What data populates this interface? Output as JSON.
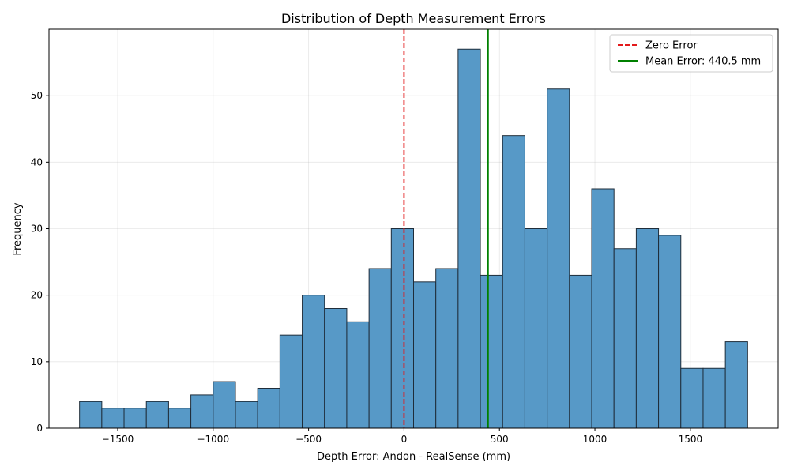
{
  "chart_data": {
    "type": "bar",
    "title": "Distribution of Depth Measurement Errors",
    "xlabel": "Depth Error: Andon - RealSense (mm)",
    "ylabel": "Frequency",
    "xlim": [
      -1860,
      1960
    ],
    "ylim": [
      0,
      60
    ],
    "xticks": [
      -1500,
      -1000,
      -500,
      0,
      500,
      1000,
      1500
    ],
    "xtick_labels": [
      "−1500",
      "−1000",
      "−500",
      "0",
      "500",
      "1000",
      "1500"
    ],
    "yticks": [
      0,
      10,
      20,
      30,
      40,
      50
    ],
    "ytick_labels": [
      "0",
      "10",
      "20",
      "30",
      "40",
      "50"
    ],
    "grid": true,
    "bin_edges": [
      -1700,
      -1583.3,
      -1466.7,
      -1350,
      -1233.3,
      -1116.7,
      -1000,
      -883.3,
      -766.7,
      -650,
      -533.3,
      -416.7,
      -300,
      -183.3,
      -66.7,
      50,
      166.7,
      283.3,
      400,
      516.7,
      633.3,
      750,
      866.7,
      983.3,
      1100,
      1216.7,
      1333.3,
      1450,
      1566.7,
      1683.3,
      1800
    ],
    "counts": [
      4,
      3,
      3,
      4,
      3,
      5,
      7,
      4,
      6,
      14,
      20,
      18,
      16,
      24,
      30,
      22,
      24,
      57,
      23,
      44,
      30,
      51,
      23,
      36,
      27,
      30,
      29,
      9,
      9,
      13
    ],
    "bar_color": "#5799c7",
    "bar_edge_color": "#1f2d3a",
    "reference_lines": [
      {
        "name": "Zero Error",
        "x": 0,
        "color": "#e31a1c",
        "style": "dashed"
      },
      {
        "name": "Mean Error: 440.5 mm",
        "x": 440.5,
        "color": "#008000",
        "style": "solid"
      }
    ],
    "legend_position": "top-right"
  }
}
